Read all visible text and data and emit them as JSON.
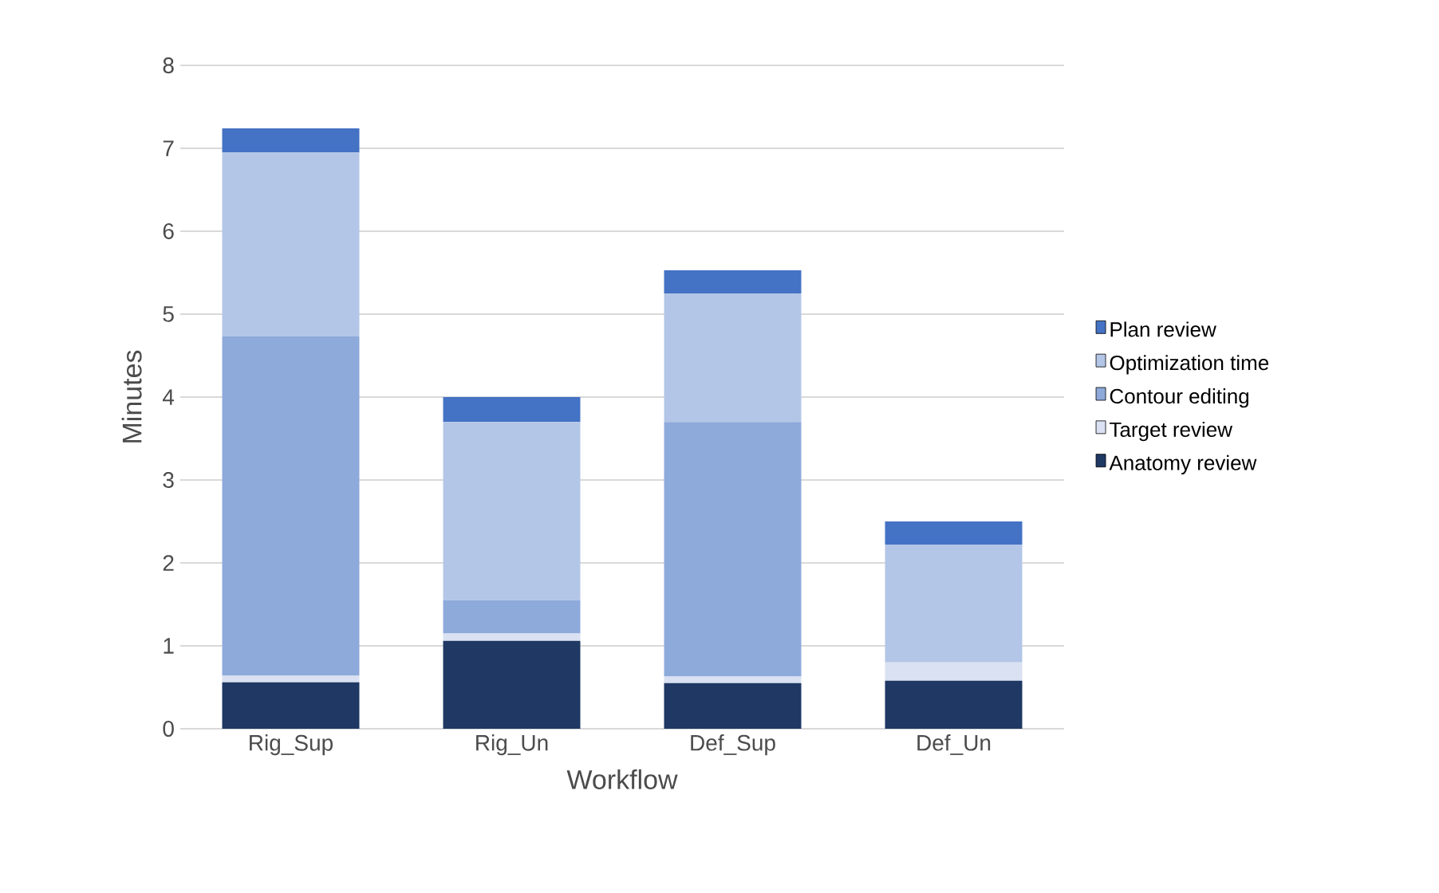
{
  "chart_data": {
    "type": "bar",
    "stacked": true,
    "xlabel": "Workflow",
    "ylabel": "Minutes",
    "categories": [
      "Rig_Sup",
      "Rig_Un",
      "Def_Sup",
      "Def_Un"
    ],
    "series": [
      {
        "name": "Anatomy review",
        "color": "#1f3864",
        "values": [
          0.56,
          1.06,
          0.55,
          0.58
        ]
      },
      {
        "name": "Target review",
        "color": "#d9e1f2",
        "values": [
          0.08,
          0.09,
          0.08,
          0.22
        ]
      },
      {
        "name": "Contour editing",
        "color": "#8eaadb",
        "values": [
          4.09,
          0.4,
          3.07,
          0
        ]
      },
      {
        "name": "Optimization time",
        "color": "#b4c6e7",
        "values": [
          2.22,
          2.15,
          1.55,
          1.42
        ]
      },
      {
        "name": "Plan review",
        "color": "#4472c4",
        "values": [
          0.29,
          0.3,
          0.28,
          0.28
        ]
      }
    ],
    "ylim": [
      0,
      8
    ],
    "yticks": [
      0,
      1,
      2,
      3,
      4,
      5,
      6,
      7,
      8
    ],
    "grid": "y",
    "legend": "right"
  }
}
